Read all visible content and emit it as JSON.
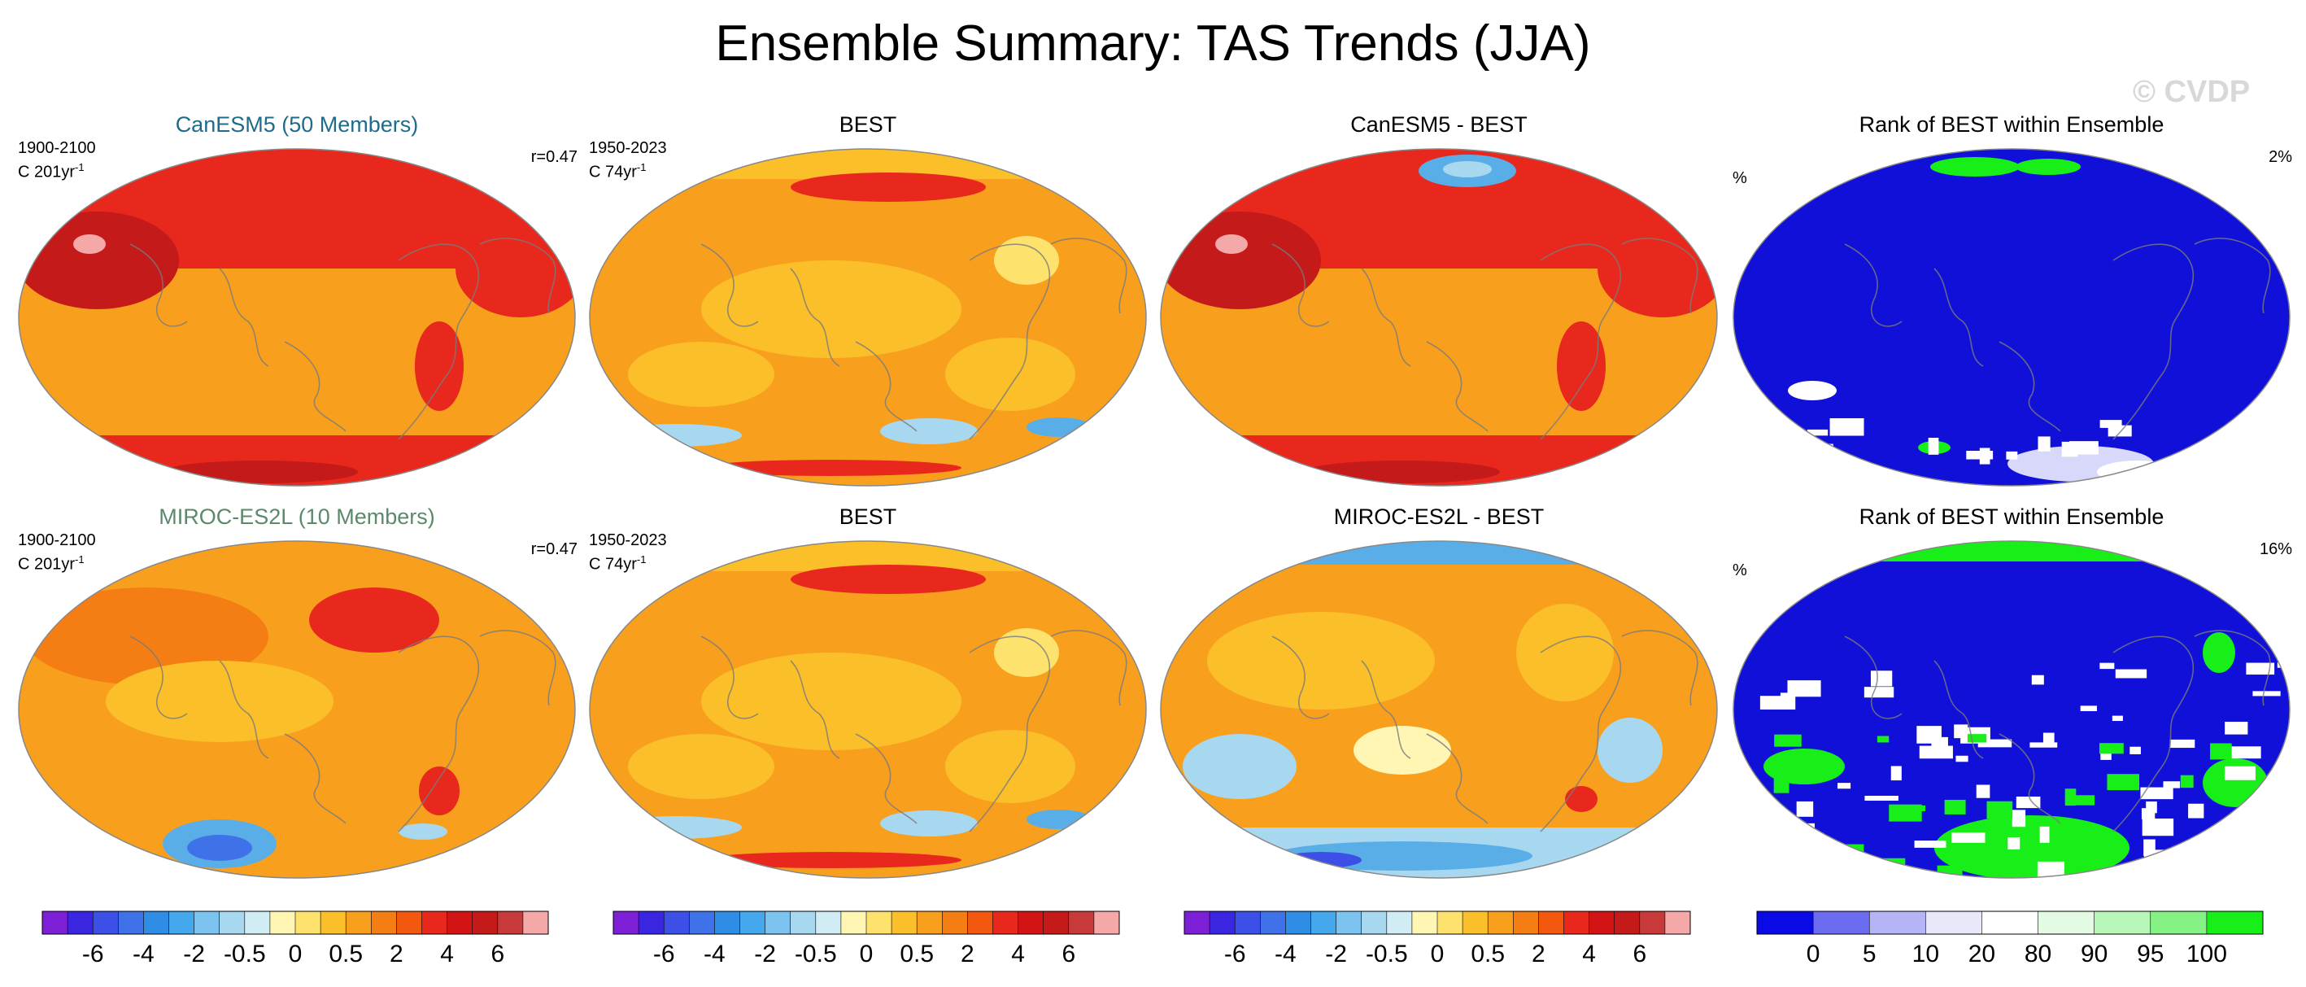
{
  "figure": {
    "title": "Ensemble Summary: TAS Trends (JJA)",
    "watermark": "© CVDP",
    "colors": {
      "ocean_warm": "#f8a01e",
      "land_mid": "#fbbf2a",
      "strong_warm": "#e8281c",
      "very_strong": "#c41a1a",
      "extreme": "#f5a8a8",
      "cool": "#a8d8f0",
      "cold": "#5aaee8",
      "rank_low": "#1010d8",
      "rank_mid": "#ffffff",
      "rank_high": "#18ee18",
      "coast": "#7a7a7a"
    }
  },
  "rows": [
    {
      "panels": [
        {
          "title": "CanESM5 (50 Members)",
          "title_color": "#1f6c8a",
          "period": "1900-2100",
          "units": "C 201yr",
          "units_exp": "-1",
          "right": "r=0.47",
          "left": "",
          "kind": "model_can"
        },
        {
          "title": "BEST",
          "title_color": "#000000",
          "period": "1950-2023",
          "units": "C 74yr",
          "units_exp": "-1",
          "right": "",
          "left": "",
          "kind": "obs"
        },
        {
          "title": "CanESM5 - BEST",
          "title_color": "#000000",
          "period": "",
          "units": "",
          "units_exp": "",
          "right": "",
          "left": "",
          "kind": "diff_can"
        },
        {
          "title": "Rank of BEST within Ensemble",
          "title_color": "#000000",
          "period": "",
          "units": "",
          "units_exp": "",
          "right": "2%",
          "left": "%",
          "kind": "rank_can"
        }
      ]
    },
    {
      "panels": [
        {
          "title": "MIROC-ES2L (10 Members)",
          "title_color": "#5a8a6a",
          "period": "1900-2100",
          "units": "C 201yr",
          "units_exp": "-1",
          "right": "r=0.47",
          "left": "",
          "kind": "model_miroc"
        },
        {
          "title": "BEST",
          "title_color": "#000000",
          "period": "1950-2023",
          "units": "C 74yr",
          "units_exp": "-1",
          "right": "",
          "left": "",
          "kind": "obs"
        },
        {
          "title": "MIROC-ES2L - BEST",
          "title_color": "#000000",
          "period": "",
          "units": "",
          "units_exp": "",
          "right": "",
          "left": "",
          "kind": "diff_miroc"
        },
        {
          "title": "Rank of BEST within Ensemble",
          "title_color": "#000000",
          "period": "",
          "units": "",
          "units_exp": "",
          "right": "16%",
          "left": "%",
          "kind": "rank_miroc"
        }
      ]
    }
  ],
  "colorbars": [
    {
      "name": "trend",
      "colors": [
        "#7e1fd8",
        "#3a26e0",
        "#3c4fe6",
        "#3f72e8",
        "#2f8de6",
        "#45a8ec",
        "#7cc3f0",
        "#a8d8f0",
        "#d2ecf6",
        "#fff6b4",
        "#fde36e",
        "#fbbf2a",
        "#f8a01e",
        "#f57e14",
        "#f2580e",
        "#e8281c",
        "#d21414",
        "#c41a1a",
        "#c83a3a",
        "#f5a8a8"
      ],
      "ticks": [
        "-6",
        "-4",
        "-2",
        "-0.5",
        "0",
        "0.5",
        "2",
        "4",
        "6"
      ],
      "tick_at": [
        2,
        4,
        6,
        8,
        10,
        12,
        14,
        16,
        18
      ]
    },
    {
      "name": "rank",
      "colors": [
        "#0a0ae6",
        "#6c6cf0",
        "#b4b4f6",
        "#e8e8fb",
        "#ffffff",
        "#e2fbe2",
        "#b8f6b8",
        "#86f286",
        "#18ee18"
      ],
      "ticks": [
        "0",
        "5",
        "10",
        "20",
        "80",
        "90",
        "95",
        "100"
      ],
      "tick_at": [
        1,
        2,
        3,
        4,
        5,
        6,
        7,
        8
      ]
    }
  ],
  "chart_data": [
    {
      "type": "map",
      "title": "CanESM5 (50 Members)",
      "period": "1900-2100",
      "units": "C 201yr-1",
      "pattern_correlation": 0.47,
      "field": "TAS trend (JJA), ensemble mean",
      "features": [
        "Strong warming (>4 C) across high northern latitudes",
        "Extreme warming over northwestern North America",
        "Warming band over Southern Ocean / Antarctica",
        "Moderate warming (0.5-2 C) over tropical oceans"
      ]
    },
    {
      "type": "map",
      "title": "BEST",
      "period": "1950-2023",
      "units": "C 74yr-1",
      "field": "TAS trend (JJA), observations",
      "features": [
        "Widespread moderate warming",
        "Weak cooling over parts of Southern Ocean",
        "Warming over Antarctic Peninsula"
      ]
    },
    {
      "type": "map",
      "title": "CanESM5 - BEST",
      "field": "difference",
      "features": [
        "Model warms more than observations almost everywhere",
        "Small negative area over Arctic Ocean"
      ]
    },
    {
      "type": "map",
      "title": "Rank of BEST within Ensemble",
      "field": "percentile rank",
      "fraction_above": "2%",
      "features": [
        "Observations rank below 5% over most of globe",
        "Isolated high ranks over Arctic and Southern Ocean"
      ]
    },
    {
      "type": "map",
      "title": "MIROC-ES2L (10 Members)",
      "period": "1900-2100",
      "units": "C 201yr-1",
      "pattern_correlation": 0.47,
      "field": "TAS trend (JJA), ensemble mean",
      "features": [
        "Moderate warming globally",
        "Cooling patch south of Pacific near Antarctica"
      ]
    },
    {
      "type": "map",
      "title": "BEST",
      "period": "1950-2023",
      "units": "C 74yr-1",
      "field": "TAS trend (JJA), observations"
    },
    {
      "type": "map",
      "title": "MIROC-ES2L - BEST",
      "field": "difference",
      "features": [
        "Negative differences over Arctic and Southern Ocean",
        "Mixed positive/negative elsewhere"
      ]
    },
    {
      "type": "map",
      "title": "Rank of BEST within Ensemble",
      "field": "percentile rank",
      "fraction_above": "16%",
      "features": [
        "Large high-rank (>95%) areas over Southern Ocean and Arctic",
        "Low ranks over tropical Pacific"
      ]
    }
  ]
}
